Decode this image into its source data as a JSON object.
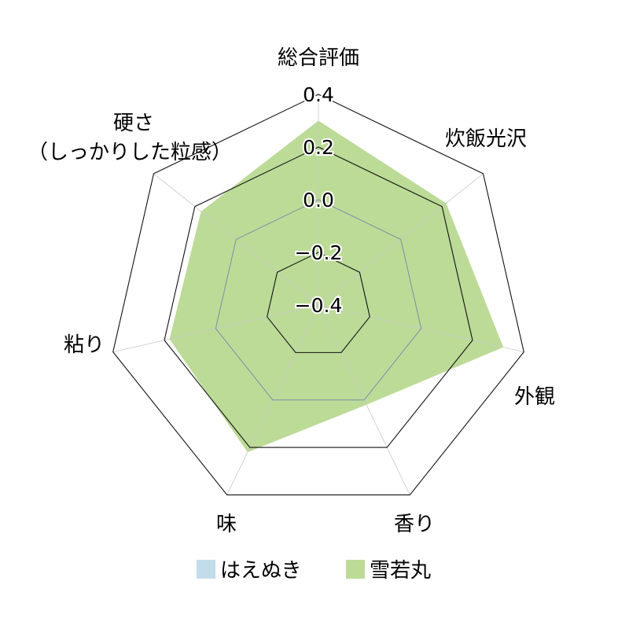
{
  "chart_data": {
    "type": "radar",
    "title": "",
    "axes": [
      "総合評価",
      "炊飯光沢",
      "外観",
      "香り",
      "味",
      "粘り",
      "硬さ（しっかりした粒感）"
    ],
    "axis_label_lines": {
      "硬さ（しっかりした粒感）": [
        "硬さ",
        "（しっかりした粒感）"
      ]
    },
    "range": [
      -0.4,
      0.4
    ],
    "ticks": [
      -0.4,
      -0.2,
      0.0,
      0.2,
      0.4
    ],
    "tick_labels": [
      "−0.4",
      "−0.2",
      "0.0",
      "0.2",
      "0.4"
    ],
    "series": [
      {
        "name": "はえぬき",
        "color": "#c3dcea",
        "values": [
          0.0,
          0.0,
          0.0,
          0.0,
          0.0,
          0.0,
          0.0
        ]
      },
      {
        "name": "雪若丸",
        "color": "#bcdb97",
        "values": [
          0.3,
          0.22,
          0.32,
          0.02,
          0.22,
          0.18,
          0.17
        ]
      }
    ],
    "legend_position": "bottom",
    "grid": true
  }
}
